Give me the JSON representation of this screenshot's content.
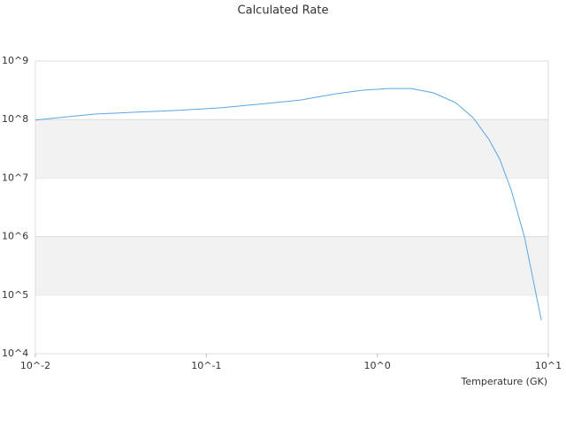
{
  "chart_data": {
    "type": "line",
    "title": "Calculated Rate",
    "x_label": "Temperature (GK)",
    "x_log": true,
    "y_log": true,
    "grid": true,
    "band_color": "#f2f2f2",
    "xlim": [
      0.01,
      10
    ],
    "ylim": [
      10000,
      1000000000
    ],
    "xticks": [
      {
        "value": 0.01,
        "label": "10^-2"
      },
      {
        "value": 0.1,
        "label": "10^-1"
      },
      {
        "value": 1,
        "label": "10^0"
      },
      {
        "value": 10,
        "label": "10^1"
      }
    ],
    "yticks": [
      {
        "value": 10000,
        "label": "10^4"
      },
      {
        "value": 100000,
        "label": "10^5"
      },
      {
        "value": 1000000,
        "label": "10^6"
      },
      {
        "value": 10000000,
        "label": "10^7"
      },
      {
        "value": 100000000,
        "label": "10^8"
      },
      {
        "value": 1000000000,
        "label": "10^9"
      }
    ],
    "series": [
      {
        "color": "#5aa5e6",
        "x": [
          0.01,
          0.0222,
          0.037,
          0.067,
          0.122,
          0.221,
          0.356,
          0.574,
          0.82,
          1.17,
          1.58,
          2.13,
          2.87,
          3.64,
          4.51,
          5.2,
          6.07,
          7.26,
          9.1
        ],
        "values": [
          98000000,
          124000000,
          133000000,
          143000000,
          159000000,
          188000000,
          216000000,
          276000000,
          317000000,
          339000000,
          339000000,
          286000000,
          195000000,
          107000000,
          45300000,
          21000000,
          6200000,
          980000,
          37500
        ]
      }
    ]
  }
}
